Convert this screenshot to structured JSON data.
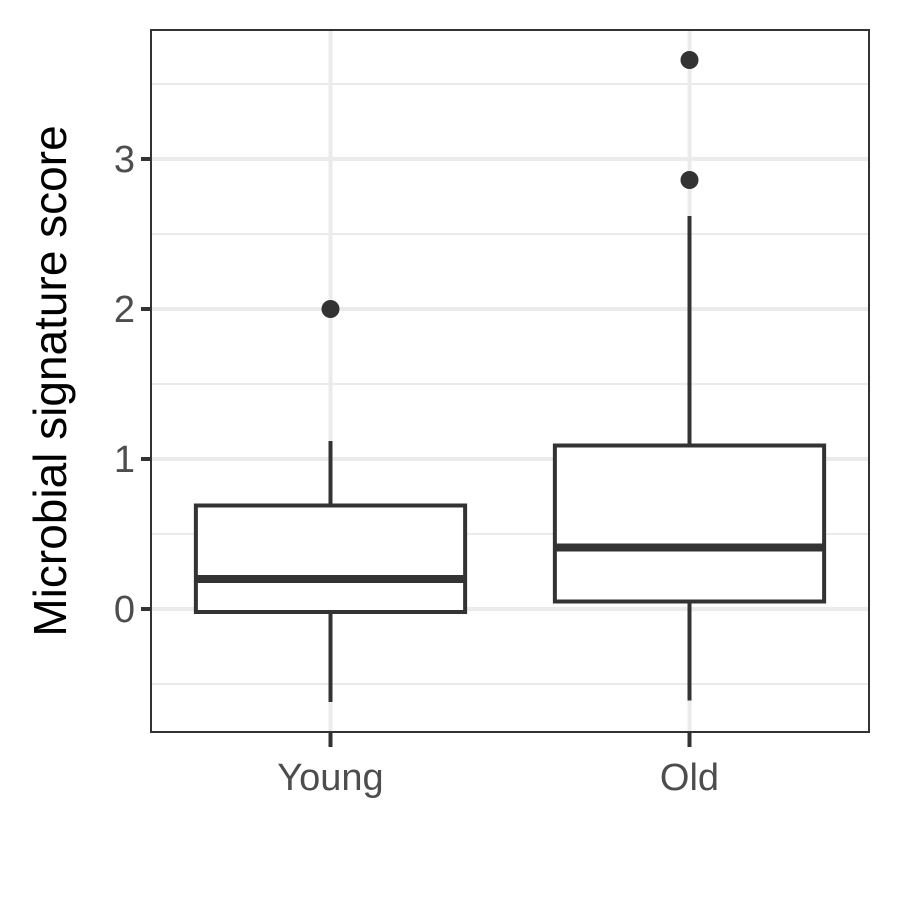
{
  "chart_data": {
    "type": "box",
    "title": "",
    "xlabel": "",
    "ylabel": "Microbial signature score",
    "categories": [
      "Young",
      "Old"
    ],
    "ylim": [
      -0.82,
      3.86
    ],
    "y_ticks": [
      0,
      1,
      2,
      3
    ],
    "y_minor_ticks": [
      -0.5,
      0.5,
      1.5,
      2.5,
      3.5
    ],
    "grid": true,
    "boxes": [
      {
        "name": "Young",
        "whisker_low": -0.62,
        "q1": -0.02,
        "median": 0.2,
        "q3": 0.69,
        "whisker_high": 1.12,
        "outliers": [
          2.0
        ]
      },
      {
        "name": "Old",
        "whisker_low": -0.61,
        "q1": 0.05,
        "median": 0.41,
        "q3": 1.09,
        "whisker_high": 2.62,
        "outliers": [
          2.86,
          3.66
        ]
      }
    ],
    "colors": {
      "box_line": "#333333",
      "box_fill": "#ffffff",
      "outlier": "#333333",
      "grid": "#ebebeb",
      "panel_border": "#333333",
      "tick_label": "#4d4d4d"
    }
  }
}
